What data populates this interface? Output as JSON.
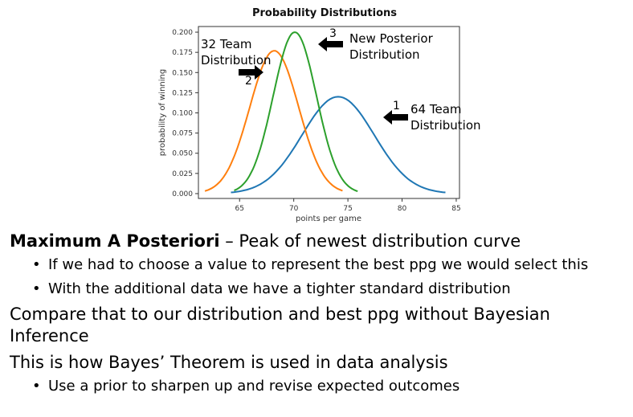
{
  "chart_data": {
    "type": "line",
    "title": "Probability Distributions",
    "xlabel": "points per game",
    "ylabel": "probability of winning",
    "xlim": [
      61.2,
      85.3
    ],
    "ylim": [
      -0.006,
      0.207
    ],
    "xticks": [
      65,
      70,
      75,
      80,
      85
    ],
    "yticks": [
      0.0,
      0.025,
      0.05,
      0.075,
      0.1,
      0.125,
      0.15,
      0.175,
      0.2
    ],
    "ytick_labels": [
      "0.000",
      "0.025",
      "0.050",
      "0.075",
      "0.100",
      "0.125",
      "0.150",
      "0.175",
      "0.200"
    ],
    "grid": false,
    "series": [
      {
        "color": "#1f77b4",
        "mean": 74.1,
        "peak": 0.12,
        "x_range": [
          64.2,
          84.0
        ]
      },
      {
        "color": "#ff7f0e",
        "mean": 68.2,
        "peak": 0.177,
        "x_range": [
          61.8,
          74.5
        ]
      },
      {
        "color": "#2ca02c",
        "mean": 70.1,
        "peak": 0.2,
        "x_range": [
          64.5,
          75.9
        ]
      }
    ]
  },
  "annotations": {
    "team32": "32 Team\nDistribution",
    "new_posterior": "New Posterior\nDistribution",
    "team64": "64 Team\nDistribution",
    "num1": "1",
    "num2": "2",
    "num3": "3"
  },
  "text": {
    "map_bold": "Maximum A Posteriori",
    "map_rest": " – Peak of newest distribution curve",
    "bullet1": "If we had to choose a value to represent the best ppg we would select this",
    "bullet2": "With the additional data we have a tighter standard distribution",
    "compare": "Compare that to our distribution and best ppg without Bayesian Inference",
    "bayes": "This is how Bayes’ Theorem is used in data analysis",
    "bullet3": "Use a prior to sharpen up and revise expected outcomes"
  }
}
